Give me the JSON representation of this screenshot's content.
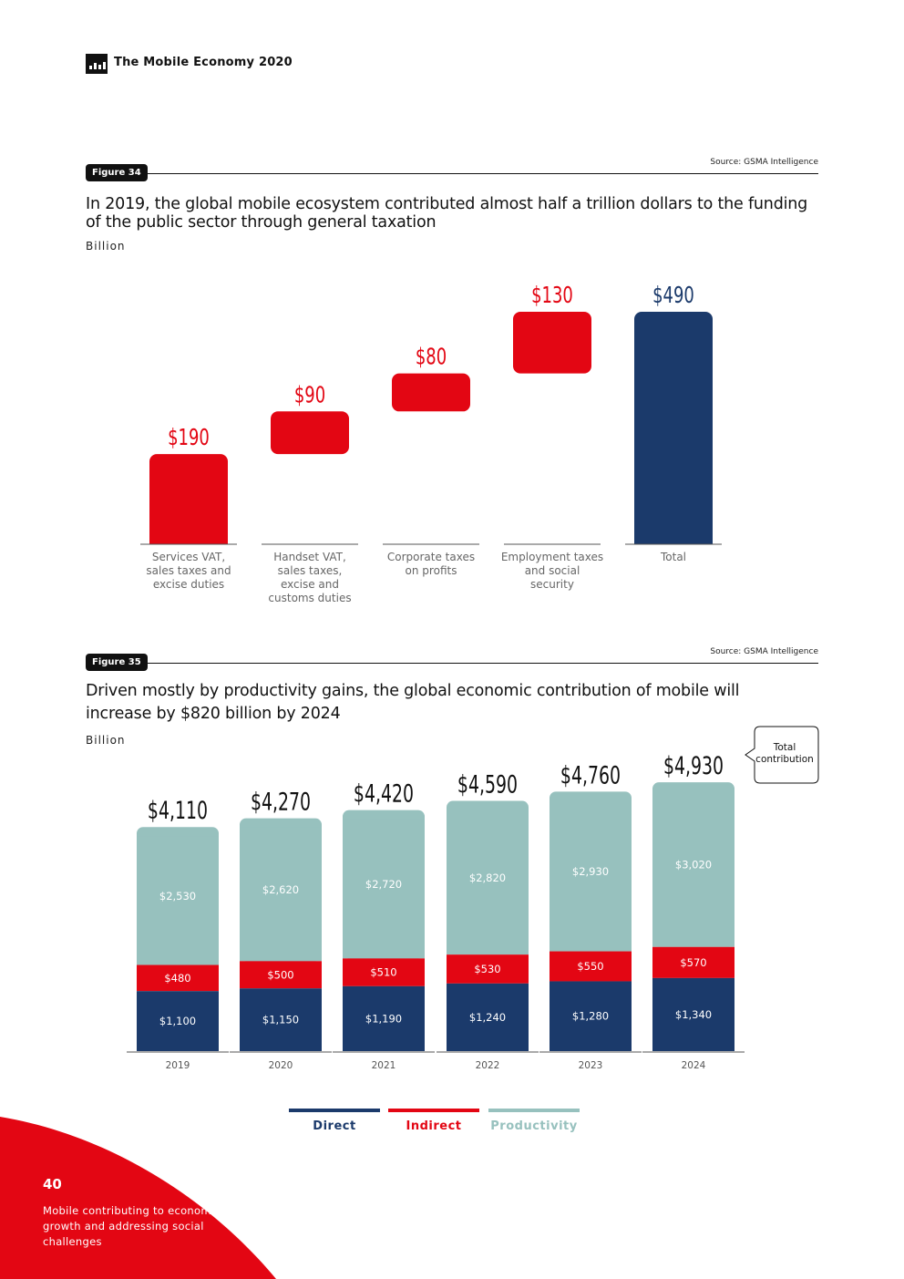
{
  "header": {
    "title": "The Mobile Economy 2020"
  },
  "figure34": {
    "label": "Figure 34",
    "source": "Source: GSMA Intelligence",
    "title": "In 2019, the global mobile ecosystem contributed almost half a trillion dollars to the funding of the public sector through general taxation",
    "unit": "Billion"
  },
  "figure35": {
    "label": "Figure 35",
    "source": "Source: GSMA Intelligence",
    "title": "Driven mostly by productivity gains, the global economic contribution of mobile will increase by $820 billion by 2024",
    "unit": "Billion",
    "callout": "Total contribution"
  },
  "legend": {
    "direct": "Direct",
    "indirect": "Indirect",
    "productivity": "Productivity"
  },
  "colors": {
    "red": "#e30613",
    "navy": "#1b3a6b",
    "teal": "#97c1be",
    "black": "#111111"
  },
  "footer": {
    "page_number": "40",
    "section": "Mobile contributing to economic growth and addressing social challenges"
  },
  "chart_data": [
    {
      "type": "bar",
      "subtype": "waterfall",
      "title": "In 2019, the global mobile ecosystem contributed almost half a trillion dollars to the funding of the public sector through general taxation",
      "ylabel": "Billion",
      "categories": [
        "Services VAT, sales taxes and excise duties",
        "Handset VAT, sales taxes, excise and customs duties",
        "Corporate taxes on profits",
        "Employment taxes and social security",
        "Total"
      ],
      "values": [
        190,
        90,
        80,
        130,
        490
      ],
      "labels": [
        "$190",
        "$90",
        "$80",
        "$130",
        "$490"
      ],
      "ylim": [
        0,
        490
      ]
    },
    {
      "type": "bar",
      "subtype": "stacked",
      "title": "Driven mostly by productivity gains, the global economic contribution of mobile will increase by $820 billion by 2024",
      "ylabel": "Billion",
      "categories": [
        "2019",
        "2020",
        "2021",
        "2022",
        "2023",
        "2024"
      ],
      "series": [
        {
          "name": "Direct",
          "values": [
            1100,
            1150,
            1190,
            1240,
            1280,
            1340
          ],
          "labels": [
            "$1,100",
            "$1,150",
            "$1,190",
            "$1,240",
            "$1,280",
            "$1,340"
          ]
        },
        {
          "name": "Indirect",
          "values": [
            480,
            500,
            510,
            530,
            550,
            570
          ],
          "labels": [
            "$480",
            "$500",
            "$510",
            "$530",
            "$550",
            "$570"
          ]
        },
        {
          "name": "Productivity",
          "values": [
            2530,
            2620,
            2720,
            2820,
            2930,
            3020
          ],
          "labels": [
            "$2,530",
            "$2,620",
            "$2,720",
            "$2,820",
            "$2,930",
            "$3,020"
          ]
        }
      ],
      "totals": [
        4110,
        4270,
        4420,
        4590,
        4760,
        4930
      ],
      "total_labels": [
        "$4,110",
        "$4,270",
        "$4,420",
        "$4,590",
        "$4,760",
        "$4,930"
      ],
      "legend": "bottom"
    }
  ]
}
